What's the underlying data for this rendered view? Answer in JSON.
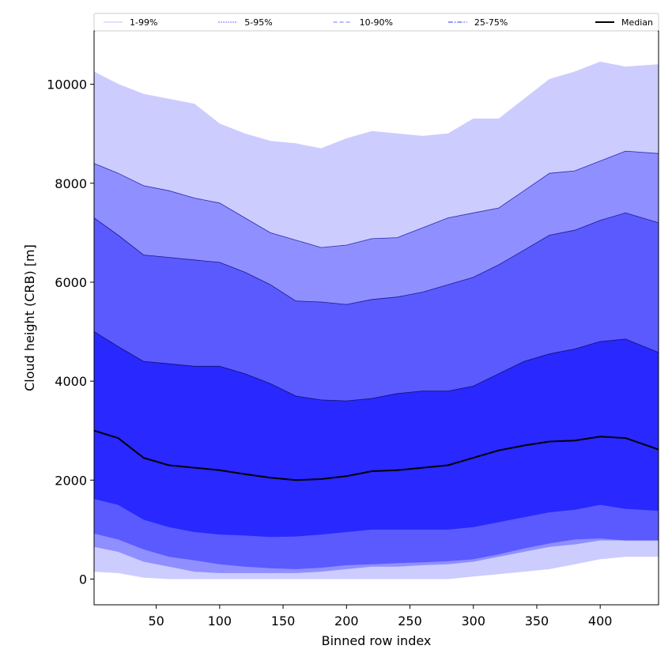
{
  "chart_data": {
    "type": "area",
    "xlabel": "Binned row index",
    "ylabel": "Cloud height (CRB) [m]",
    "xlim": [
      1,
      446
    ],
    "ylim": [
      -520,
      11080
    ],
    "x_ticks": [
      50,
      100,
      150,
      200,
      250,
      300,
      350,
      400
    ],
    "y_ticks": [
      0,
      2000,
      4000,
      6000,
      8000,
      10000
    ],
    "x": [
      1,
      20,
      40,
      60,
      80,
      100,
      120,
      140,
      160,
      180,
      200,
      220,
      240,
      260,
      280,
      300,
      320,
      340,
      360,
      380,
      400,
      420,
      446
    ],
    "percentiles": {
      "p1": [
        150,
        120,
        30,
        0,
        0,
        0,
        0,
        0,
        0,
        0,
        0,
        0,
        0,
        0,
        0,
        50,
        100,
        150,
        200,
        300,
        400,
        450,
        450
      ],
      "p5": [
        650,
        550,
        350,
        250,
        150,
        120,
        120,
        120,
        120,
        150,
        200,
        250,
        250,
        280,
        300,
        350,
        450,
        550,
        650,
        700,
        780,
        780,
        780
      ],
      "p10": [
        920,
        800,
        600,
        450,
        380,
        300,
        250,
        220,
        200,
        230,
        280,
        300,
        320,
        340,
        360,
        400,
        500,
        620,
        720,
        800,
        820,
        780,
        780
      ],
      "p25": [
        1620,
        1500,
        1200,
        1050,
        950,
        900,
        880,
        850,
        860,
        900,
        950,
        1000,
        1000,
        1000,
        1000,
        1050,
        1150,
        1250,
        1350,
        1400,
        1500,
        1420,
        1380
      ],
      "p50": [
        3000,
        2850,
        2450,
        2300,
        2250,
        2200,
        2120,
        2050,
        2000,
        2020,
        2080,
        2180,
        2200,
        2250,
        2300,
        2450,
        2600,
        2700,
        2780,
        2800,
        2880,
        2850,
        2620
      ],
      "p75": [
        5000,
        4700,
        4400,
        4350,
        4300,
        4300,
        4150,
        3950,
        3700,
        3620,
        3600,
        3650,
        3750,
        3800,
        3800,
        3900,
        4150,
        4400,
        4550,
        4650,
        4800,
        4850,
        4580
      ],
      "p90": [
        7300,
        6950,
        6550,
        6500,
        6450,
        6400,
        6200,
        5950,
        5620,
        5600,
        5550,
        5650,
        5700,
        5800,
        5950,
        6100,
        6350,
        6650,
        6950,
        7050,
        7250,
        7400,
        7200
      ],
      "p95": [
        8400,
        8200,
        7950,
        7850,
        7700,
        7600,
        7300,
        7000,
        6850,
        6700,
        6750,
        6880,
        6900,
        7100,
        7300,
        7400,
        7500,
        7850,
        8200,
        8250,
        8450,
        8650,
        8600
      ],
      "p99": [
        10250,
        10000,
        9800,
        9700,
        9600,
        9200,
        9000,
        8850,
        8800,
        8700,
        8900,
        9050,
        9000,
        8950,
        9000,
        9300,
        9300,
        9700,
        10100,
        10250,
        10450,
        10350,
        10400
      ]
    },
    "bands": [
      {
        "name": "1-99%",
        "lower": "p1",
        "upper": "p99",
        "fill": "#ccccff",
        "edge": "#ccccff"
      },
      {
        "name": "5-95%",
        "lower": "p5",
        "upper": "p95",
        "fill": "#8f8fff",
        "edge": "#2a2ab0"
      },
      {
        "name": "10-90%",
        "lower": "p10",
        "upper": "p90",
        "fill": "#5a5aff",
        "edge": "#1a1a90"
      },
      {
        "name": "25-75%",
        "lower": "p25",
        "upper": "p75",
        "fill": "#2828ff",
        "edge": "#101070"
      }
    ],
    "median": {
      "name": "Median",
      "key": "p50",
      "color": "#000000"
    },
    "legend": {
      "placement": "top",
      "entries": [
        {
          "label": "1-99%",
          "color": "#ccccff",
          "style": "solid"
        },
        {
          "label": "5-95%",
          "color": "#6b6bff",
          "style": "dotted"
        },
        {
          "label": "10-90%",
          "color": "#8f8fff",
          "style": "dashed"
        },
        {
          "label": "25-75%",
          "color": "#5a5aff",
          "style": "dashdot"
        },
        {
          "label": "Median",
          "color": "#000000",
          "style": "solid"
        }
      ]
    }
  }
}
